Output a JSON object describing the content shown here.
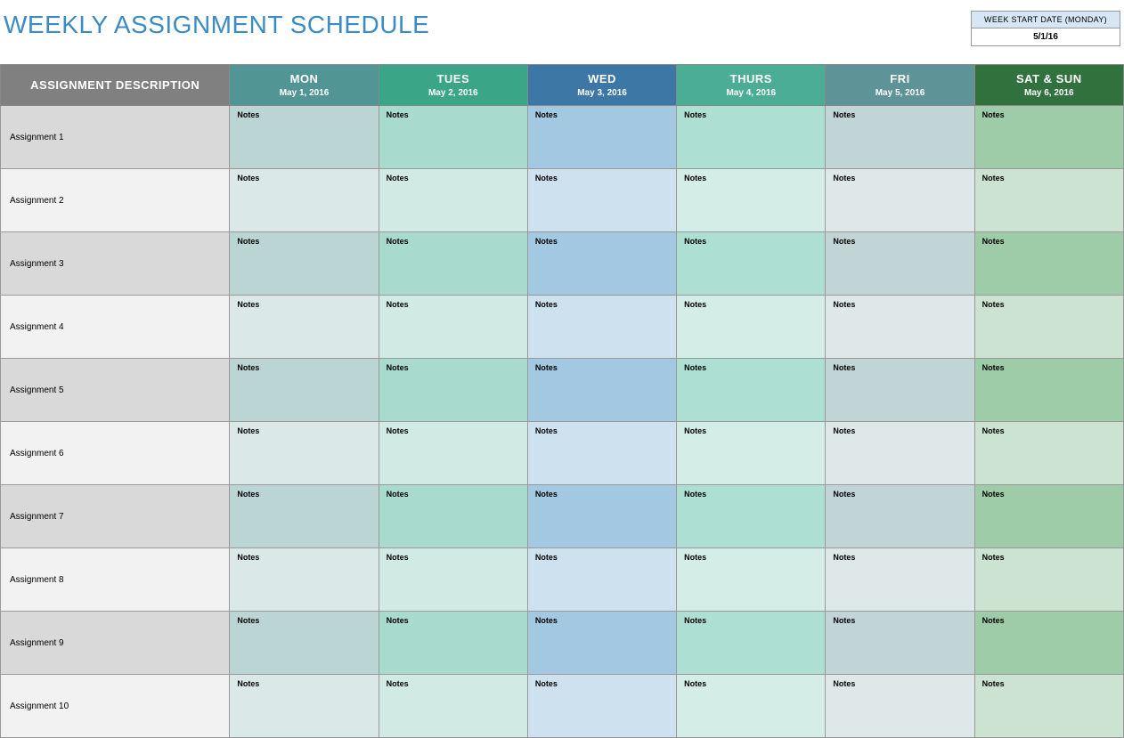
{
  "title": "WEEKLY ASSIGNMENT SCHEDULE",
  "title_color": "#3b8bc4",
  "start_date": {
    "label": "WEEK START DATE (MONDAY)",
    "value": "5/1/16"
  },
  "columns": [
    {
      "header": "ASSIGNMENT DESCRIPTION",
      "date": "",
      "bg": "#808080"
    },
    {
      "header": "MON",
      "date": "May 1, 2016",
      "bg": "#529595"
    },
    {
      "header": "TUES",
      "date": "May 2, 2016",
      "bg": "#3aa587"
    },
    {
      "header": "WED",
      "date": "May 3, 2016",
      "bg": "#3c77a6"
    },
    {
      "header": "THURS",
      "date": "May 4, 2016",
      "bg": "#4aad94"
    },
    {
      "header": "FRI",
      "date": "May 5, 2016",
      "bg": "#5e9398"
    },
    {
      "header": "SAT & SUN",
      "date": "May 6, 2016",
      "bg": "#30713e"
    }
  ],
  "desc_colors": {
    "odd": "#d9d9d9",
    "even": "#f2f2f2"
  },
  "cell_colors": {
    "mon": {
      "odd": "#bad5d3",
      "even": "#dae8e7"
    },
    "tues": {
      "odd": "#a8dacd",
      "even": "#d1ebe4"
    },
    "wed": {
      "odd": "#a3c8e1",
      "even": "#cde1ef"
    },
    "thurs": {
      "odd": "#ade0d2",
      "even": "#d4ede6"
    },
    "fri": {
      "odd": "#c1d5d6",
      "even": "#dee8e9"
    },
    "satsun": {
      "odd": "#9ecba8",
      "even": "#cce3d1"
    }
  },
  "note_label": "Notes",
  "assignments": [
    "Assignment 1",
    "Assignment 2",
    "Assignment 3",
    "Assignment 4",
    "Assignment 5",
    "Assignment 6",
    "Assignment 7",
    "Assignment 8",
    "Assignment 9",
    "Assignment 10"
  ]
}
